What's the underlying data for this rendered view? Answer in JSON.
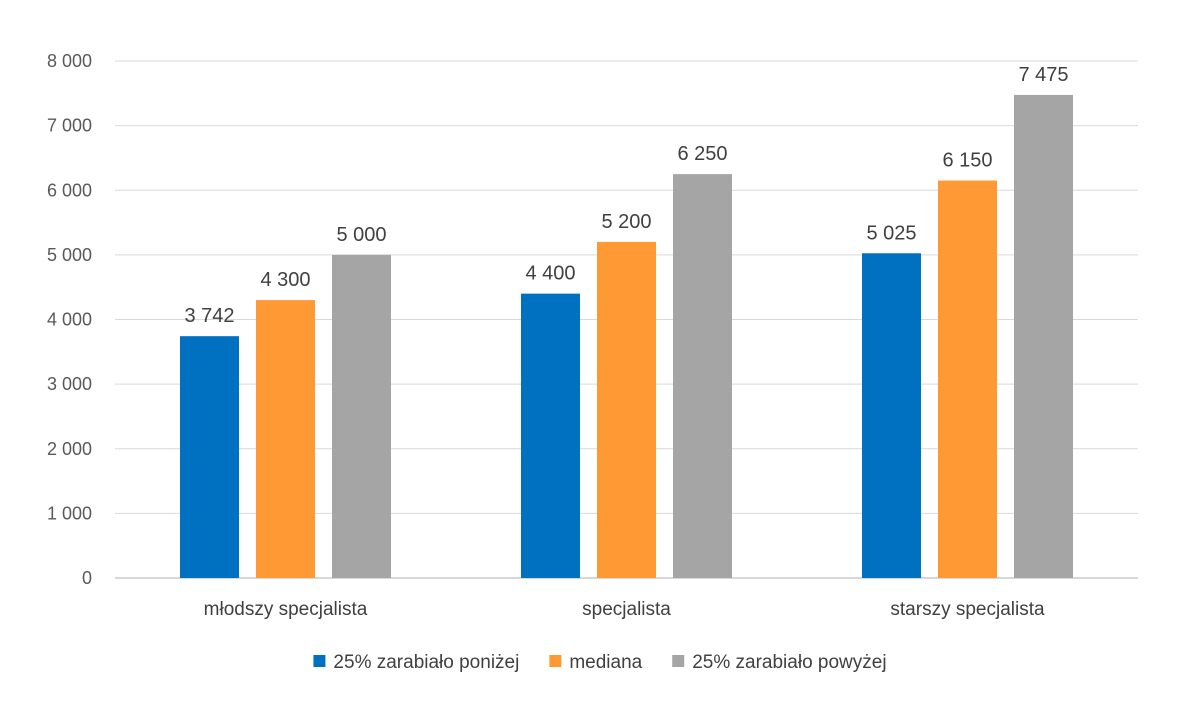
{
  "chart_data": {
    "type": "bar",
    "title": "",
    "xlabel": "",
    "ylabel": "",
    "categories": [
      "młodszy specjalista",
      "specjalista",
      "starszy specjalista"
    ],
    "series": [
      {
        "name": "25% zarabiało poniżej",
        "color": "#0070c0",
        "values": [
          3742,
          4400,
          5025
        ],
        "labels": [
          "3 742",
          "4 400",
          "5 025"
        ]
      },
      {
        "name": "mediana",
        "color": "#ff9933",
        "values": [
          4300,
          5200,
          6150
        ],
        "labels": [
          "4 300",
          "5 200",
          "6 150"
        ]
      },
      {
        "name": "25% zarabiało powyżej",
        "color": "#a5a5a5",
        "values": [
          5000,
          6250,
          7475
        ],
        "labels": [
          "5 000",
          "6 250",
          "7 475"
        ]
      }
    ],
    "ylim": [
      0,
      8000
    ],
    "yticks": [
      0,
      1000,
      2000,
      3000,
      4000,
      5000,
      6000,
      7000,
      8000
    ],
    "ytick_labels": [
      "0",
      "1 000",
      "2 000",
      "3 000",
      "4 000",
      "5 000",
      "6 000",
      "7 000",
      "8 000"
    ],
    "grid": true,
    "legend_position": "bottom"
  }
}
